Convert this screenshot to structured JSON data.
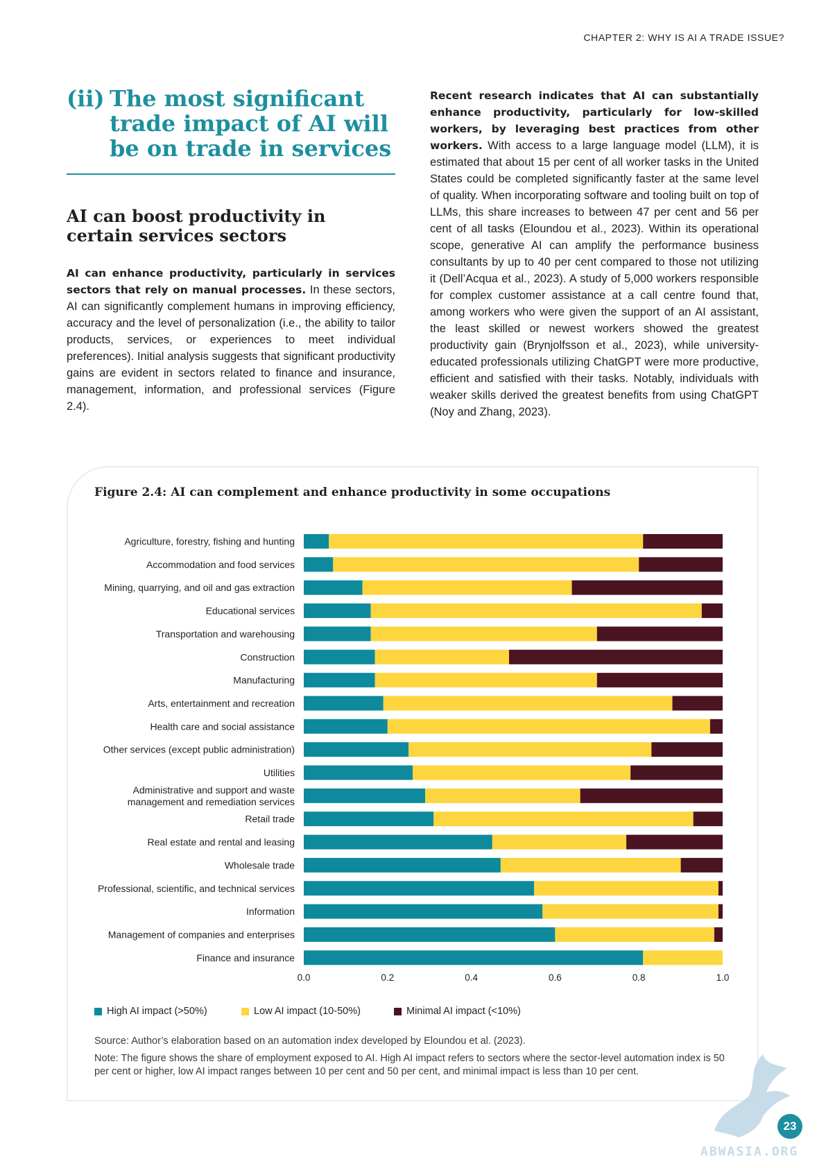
{
  "header": {
    "chapter": "CHAPTER 2: WHY IS AI A TRADE ISSUE?"
  },
  "section": {
    "number": "(ii)",
    "title": "The most significant trade impact of AI will be on trade in services"
  },
  "left": {
    "subheading": "AI can boost productivity in certain services sectors",
    "para_bold": "AI can enhance productivity, particularly in services sectors that rely on manual processes.",
    "para_rest": " In these sectors, AI can significantly complement humans in improving efficiency, accuracy and the level of personalization (i.e., the ability to tailor products, services, or experiences to meet individual preferences). Initial analysis suggests that significant productivity gains are evident in sectors related to finance and insurance, management, information, and professional services (Figure 2.4)."
  },
  "right": {
    "para_bold": "Recent research indicates that AI can substantially enhance productivity, particularly for low-skilled workers, by leveraging best practices from other workers.",
    "para_rest": " With access to a large language model (LLM), it is estimated that about 15 per cent of all worker tasks in the United States could be completed significantly faster at the same level of quality. When incorporating software and tooling built on top of LLMs, this share increases to between 47 per cent and 56 per cent of all tasks (Eloundou et al., 2023). Within its operational scope, generative AI can amplify the performance business consultants by up to 40 per cent compared to those not utilizing it (Dell’Acqua et al., 2023). A study of 5,000 workers responsible for complex customer assistance at a call centre found that, among workers who were given the support of an AI assistant, the least skilled or newest workers showed the greatest productivity gain (Brynjolfsson et al., 2023), while university-educated professionals utilizing ChatGPT were more productive, efficient and satisfied with their tasks. Notably, individuals with weaker skills derived the greatest benefits from using ChatGPT (Noy and Zhang, 2023)."
  },
  "figure": {
    "title": "Figure 2.4: AI can complement and enhance productivity in some occupations",
    "source": "Source: Author’s elaboration based on an automation index developed by Eloundou et al. (2023).",
    "note": "Note: The figure shows the share of employment exposed to AI. High AI impact refers to sectors where the sector-level automation index is 50 per cent or higher, low AI impact ranges between 10 per cent and 50 per cent, and minimal impact is less than 10 per cent."
  },
  "chart_data": {
    "type": "bar",
    "orientation": "horizontal",
    "stacked": true,
    "categories": [
      [
        "Agriculture, forestry, fishing and hunting"
      ],
      [
        "Accommodation and food services"
      ],
      [
        "Mining, quarrying, and oil and gas extraction"
      ],
      [
        "Educational services"
      ],
      [
        "Transportation and warehousing"
      ],
      [
        "Construction"
      ],
      [
        "Manufacturing"
      ],
      [
        "Arts, entertainment and recreation"
      ],
      [
        "Health care and social assistance"
      ],
      [
        "Other services (except public administration)"
      ],
      [
        "Utilities"
      ],
      [
        "Administrative and support and waste",
        "management and remediation services"
      ],
      [
        "Retail trade"
      ],
      [
        "Real estate and rental and leasing"
      ],
      [
        "Wholesale trade"
      ],
      [
        "Professional, scientific, and technical services"
      ],
      [
        "Information"
      ],
      [
        "Management of companies and enterprises"
      ],
      [
        "Finance and insurance"
      ]
    ],
    "series": [
      {
        "name": "High AI impact (>50%)",
        "color": "#0e8a9c",
        "values": [
          0.06,
          0.07,
          0.14,
          0.16,
          0.16,
          0.17,
          0.17,
          0.19,
          0.2,
          0.25,
          0.26,
          0.29,
          0.31,
          0.45,
          0.47,
          0.55,
          0.57,
          0.6,
          0.81
        ]
      },
      {
        "name": "Low AI impact (10-50%)",
        "color": "#fdd53f",
        "values": [
          0.75,
          0.73,
          0.5,
          0.79,
          0.54,
          0.32,
          0.53,
          0.69,
          0.77,
          0.58,
          0.52,
          0.37,
          0.62,
          0.32,
          0.43,
          0.44,
          0.42,
          0.38,
          0.19
        ]
      },
      {
        "name": "Minimal AI impact (<10%)",
        "color": "#4a1420",
        "values": [
          0.19,
          0.2,
          0.36,
          0.05,
          0.3,
          0.51,
          0.3,
          0.12,
          0.03,
          0.17,
          0.22,
          0.34,
          0.07,
          0.23,
          0.1,
          0.01,
          0.01,
          0.02,
          0.0
        ]
      }
    ],
    "xlim": [
      0.0,
      1.0
    ],
    "xticks": [
      "0.0",
      "0.2",
      "0.4",
      "0.6",
      "0.8",
      "1.0"
    ],
    "legend_position": "bottom-left",
    "grid": false
  },
  "page": {
    "number": "23"
  },
  "watermark": {
    "text": "ABWASIA.ORG"
  }
}
